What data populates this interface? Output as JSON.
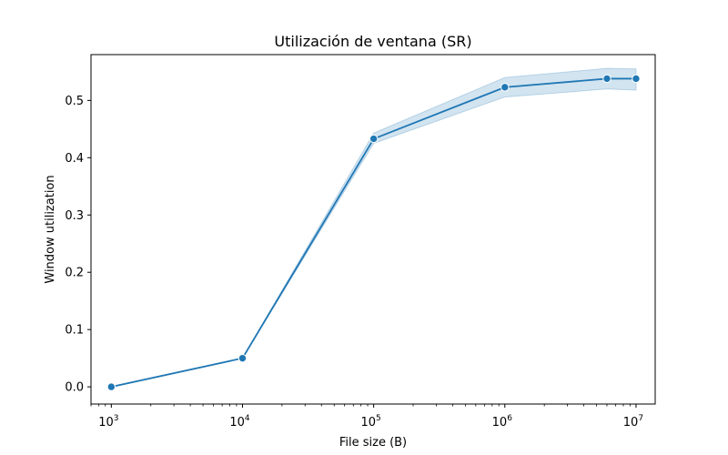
{
  "chart_data": {
    "type": "line",
    "title": "Utilización de ventana (SR)",
    "xlabel": "File size (B)",
    "ylabel": "Window utilization",
    "x_scale": "log",
    "xlim": [
      700,
      14000000
    ],
    "ylim": [
      -0.03,
      0.58
    ],
    "x_ticks": [
      {
        "base": "10",
        "exp": "3",
        "value": 1000
      },
      {
        "base": "10",
        "exp": "4",
        "value": 10000
      },
      {
        "base": "10",
        "exp": "5",
        "value": 100000
      },
      {
        "base": "10",
        "exp": "6",
        "value": 1000000
      },
      {
        "base": "10",
        "exp": "7",
        "value": 10000000
      }
    ],
    "y_ticks": [
      "0.0",
      "0.1",
      "0.2",
      "0.3",
      "0.4",
      "0.5"
    ],
    "grid": false,
    "series": [
      {
        "color": "#1f77b4",
        "band_color": "#1f77b4",
        "x": [
          1000,
          10000,
          100000,
          1000000,
          6000000,
          10000000
        ],
        "y": [
          0.0,
          0.05,
          0.433,
          0.523,
          0.538,
          0.538
        ],
        "ci_low": [
          0.0,
          0.05,
          0.425,
          0.506,
          0.52,
          0.518
        ],
        "ci_high": [
          0.0,
          0.05,
          0.443,
          0.54,
          0.556,
          0.555
        ]
      }
    ]
  }
}
